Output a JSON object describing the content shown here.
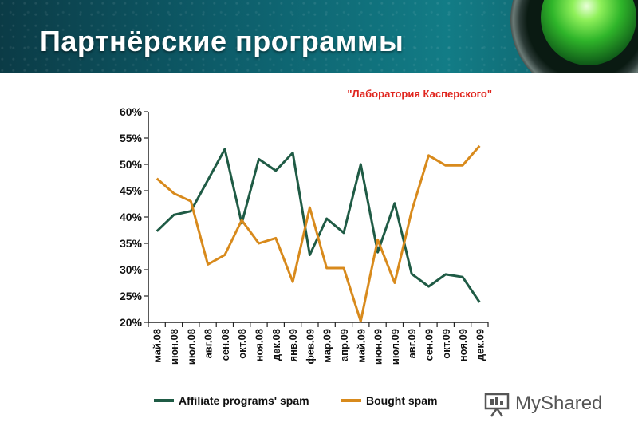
{
  "slide": {
    "title": "Партнёрские программы"
  },
  "watermark": {
    "text": "MyShared"
  },
  "chart_data": {
    "type": "line",
    "subtitle": "\"Лаборатория Касперского\"",
    "categories": [
      "май.08",
      "июн.08",
      "июл.08",
      "авг.08",
      "сен.08",
      "окт.08",
      "ноя.08",
      "дек.08",
      "янв.09",
      "фев.09",
      "мар.09",
      "апр.09",
      "май.09",
      "июн.09",
      "июл.09",
      "авг.09",
      "сен.09",
      "окт.09",
      "ноя.09",
      "дек.09"
    ],
    "series": [
      {
        "name": "Affiliate programs' spam",
        "color": "#1f5b45",
        "values": [
          37.3,
          40.4,
          41.1,
          47.0,
          52.9,
          38.8,
          51.0,
          48.8,
          52.2,
          32.8,
          39.7,
          37.0,
          50.0,
          33.3,
          42.6,
          29.2,
          26.8,
          29.1,
          28.6,
          23.8
        ]
      },
      {
        "name": "Bought spam",
        "color": "#d88a1c",
        "values": [
          47.3,
          44.5,
          43.0,
          31.0,
          32.8,
          39.4,
          35.0,
          36.0,
          27.7,
          41.8,
          30.3,
          30.3,
          20.2,
          35.7,
          27.5,
          41.1,
          51.7,
          49.8,
          49.8,
          53.5
        ]
      }
    ],
    "ylim": [
      20,
      60
    ],
    "y_ticks": [
      "20%",
      "25%",
      "30%",
      "35%",
      "40%",
      "45%",
      "50%",
      "55%",
      "60%"
    ],
    "legend_position": "bottom",
    "grid": false
  }
}
